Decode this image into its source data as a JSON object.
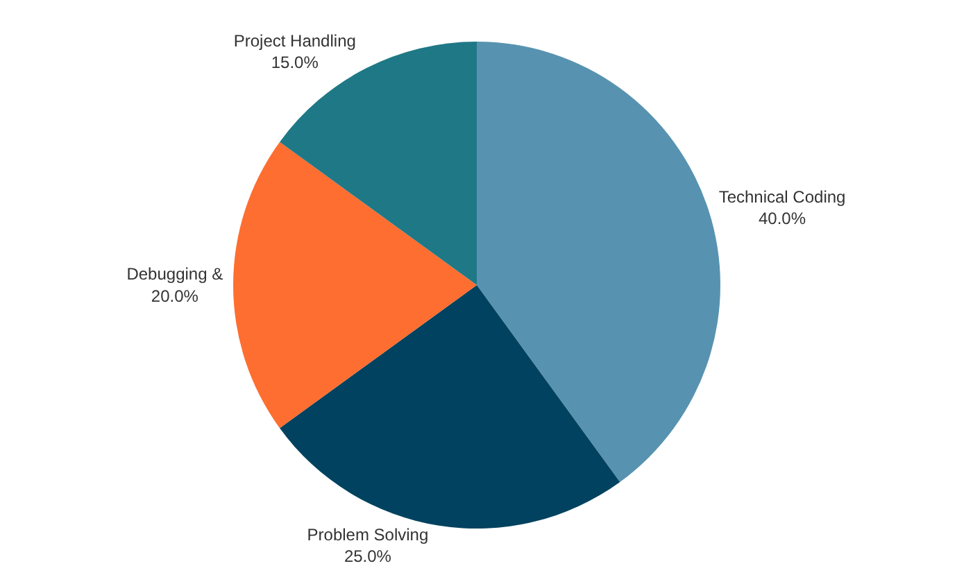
{
  "chart_data": {
    "type": "pie",
    "categories": [
      "Technical Coding",
      "Problem Solving",
      "Debugging &",
      "Project Handling"
    ],
    "values": [
      40,
      25,
      20,
      15
    ],
    "value_labels": [
      "40.0%",
      "25.0%",
      "20.0%",
      "15.0%"
    ],
    "colors": [
      "#5793b0",
      "#00425f",
      "#fe6e30",
      "#1f7886"
    ],
    "legend": false
  }
}
